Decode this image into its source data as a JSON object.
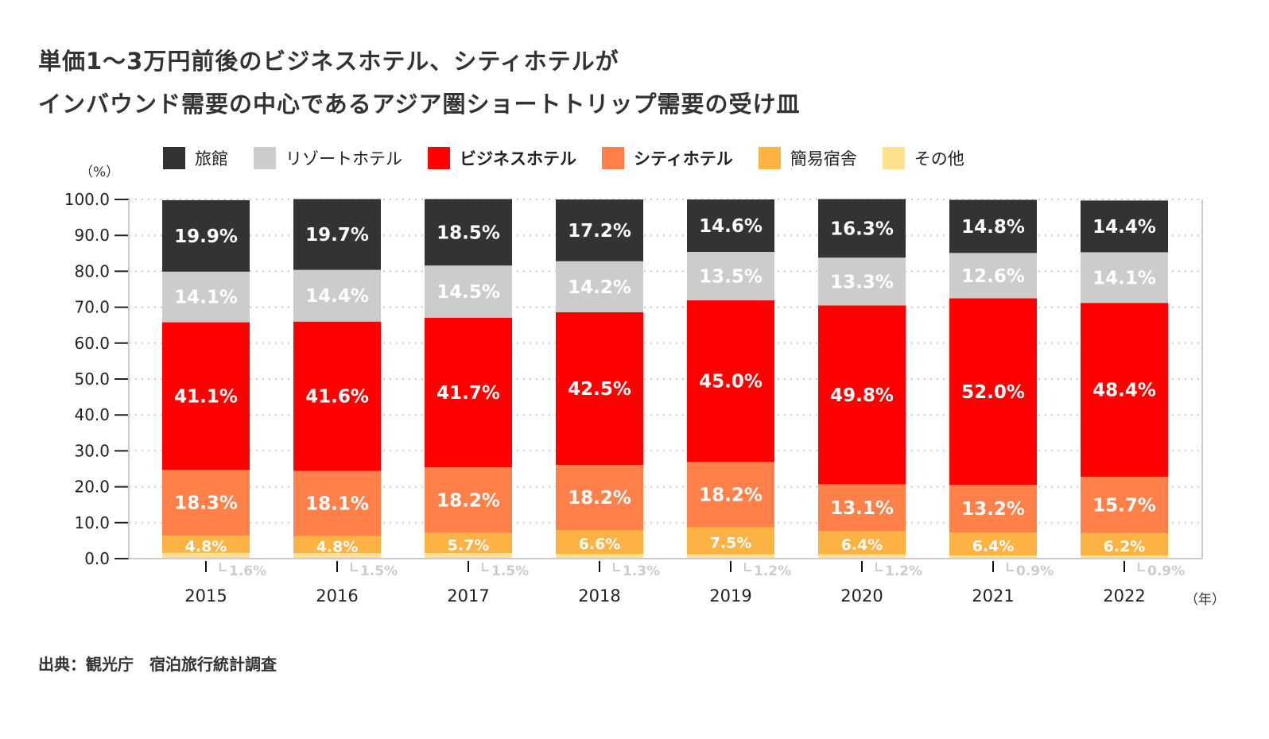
{
  "title_lines": [
    "単価1〜3万円前後のビジネスホテル、シティホテルが",
    "インバウンド需要の中心であるアジア圏ショートトリップ需要の受け皿"
  ],
  "source": "出典：観光庁　宿泊旅行統計調査",
  "chart_data": {
    "type": "bar",
    "stacked": true,
    "title": "単価1〜3万円前後のビジネスホテル、シティホテルが インバウンド需要の中心であるアジア圏ショートトリップ需要の受け皿",
    "ylabel": "（%）",
    "xlabel": "（年）",
    "ylim": [
      0,
      100
    ],
    "yticks": [
      "0.0",
      "10.0",
      "20.0",
      "30.0",
      "40.0",
      "50.0",
      "60.0",
      "70.0",
      "80.0",
      "90.0",
      "100.0"
    ],
    "grid": true,
    "legend_position": "top",
    "categories": [
      "2015",
      "2016",
      "2017",
      "2018",
      "2019",
      "2020",
      "2021",
      "2022"
    ],
    "series": [
      {
        "name": "その他",
        "color": "#FFE08C",
        "values": [
          1.6,
          1.5,
          1.5,
          1.3,
          1.2,
          1.2,
          0.9,
          0.9
        ],
        "bold": false
      },
      {
        "name": "簡易宿舎",
        "color": "#FDB244",
        "values": [
          4.8,
          4.8,
          5.7,
          6.6,
          7.5,
          6.4,
          6.4,
          6.2
        ],
        "bold": false
      },
      {
        "name": "シティホテル",
        "color": "#FF8049",
        "values": [
          18.3,
          18.1,
          18.2,
          18.2,
          18.2,
          13.1,
          13.2,
          15.7
        ],
        "bold": true
      },
      {
        "name": "ビジネスホテル",
        "color": "#FF0000",
        "values": [
          41.1,
          41.6,
          41.7,
          42.5,
          45.0,
          49.8,
          52.0,
          48.4
        ],
        "bold": true
      },
      {
        "name": "リゾートホテル",
        "color": "#CCCCCC",
        "values": [
          14.1,
          14.4,
          14.5,
          14.2,
          13.5,
          13.3,
          12.6,
          14.1
        ],
        "bold": false
      },
      {
        "name": "旅館",
        "color": "#333333",
        "values": [
          19.9,
          19.7,
          18.5,
          17.2,
          14.6,
          16.3,
          14.8,
          14.4
        ],
        "bold": false
      }
    ],
    "legend_order": [
      "旅館",
      "リゾートホテル",
      "ビジネスホテル",
      "シティホテル",
      "簡易宿舎",
      "その他"
    ]
  }
}
